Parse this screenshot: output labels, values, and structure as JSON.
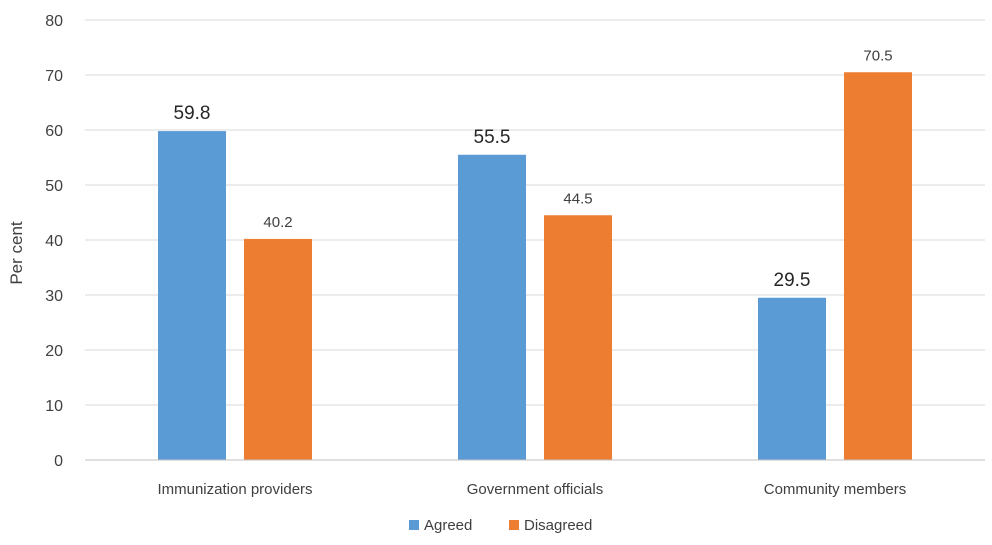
{
  "chart_data": {
    "type": "bar",
    "categories": [
      "Immunization providers",
      "Government officials",
      "Community members"
    ],
    "series": [
      {
        "name": "Agreed",
        "values": [
          59.8,
          55.5,
          29.5
        ],
        "color": "#5b9bd5"
      },
      {
        "name": "Disagreed",
        "values": [
          40.2,
          44.5,
          70.5
        ],
        "color": "#ed7d31"
      }
    ],
    "title": "",
    "xlabel": "",
    "ylabel": "Per cent",
    "ylim": [
      0,
      80
    ],
    "yticks": [
      0,
      10,
      20,
      30,
      40,
      50,
      60,
      70,
      80
    ],
    "grid": true,
    "legend_position": "bottom",
    "data_labels": [
      [
        "59.8",
        "40.2"
      ],
      [
        "55.5",
        "44.5"
      ],
      [
        "29.5",
        "70.5"
      ]
    ],
    "emphasized_labels": [
      [
        true,
        false
      ],
      [
        true,
        false
      ],
      [
        true,
        false
      ]
    ]
  }
}
